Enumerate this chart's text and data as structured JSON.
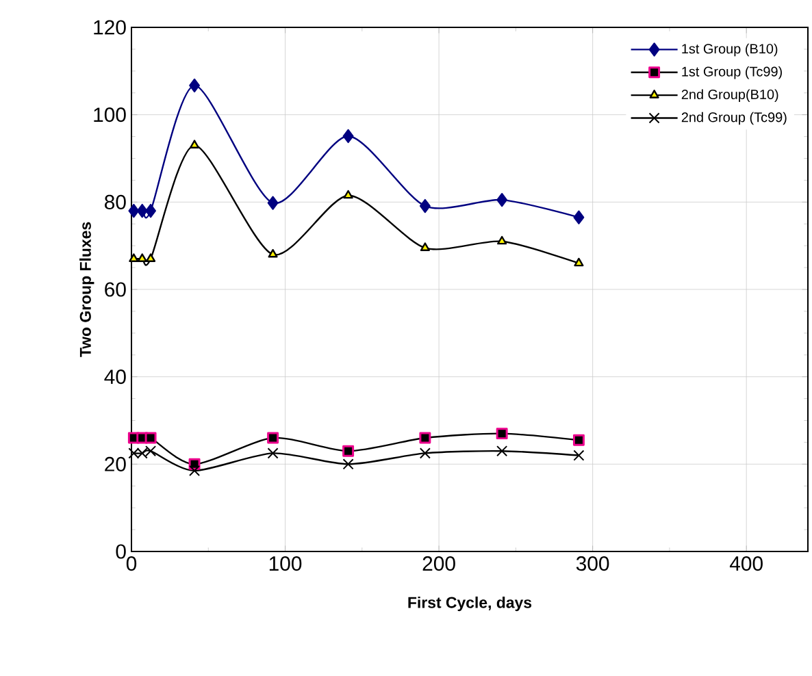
{
  "chart_data": {
    "type": "line",
    "xlabel": "First Cycle, days",
    "ylabel": "Two Group Fluxes",
    "x": [
      1.5,
      7,
      12.5,
      41,
      92,
      141,
      191,
      241,
      291
    ],
    "xlim": [
      0,
      440
    ],
    "xticks": [
      0,
      100,
      200,
      300,
      400
    ],
    "ylim": [
      0,
      120
    ],
    "yticks": [
      0,
      20,
      40,
      60,
      80,
      100,
      120
    ],
    "grid": true,
    "legend": "top right",
    "series": [
      {
        "name": "1st Group (B10)",
        "color": "#000080",
        "marker": "diamond",
        "values": [
          78,
          78,
          78,
          106.7,
          79.8,
          95.1,
          79.1,
          80.5,
          76.5
        ]
      },
      {
        "name": "1st Group (Tc99)",
        "color": "#000000",
        "marker": "square",
        "values": [
          26,
          26,
          26,
          20,
          26,
          23,
          26,
          27,
          25.5
        ]
      },
      {
        "name": "2nd Group(B10)",
        "color": "#000000",
        "marker": "triangle",
        "values": [
          67,
          67,
          67,
          93,
          68,
          81.5,
          69.5,
          71,
          66
        ]
      },
      {
        "name": "2nd Group (Tc99)",
        "color": "#000000",
        "marker": "cross",
        "values": [
          22.5,
          22.5,
          23,
          18.5,
          22.5,
          20,
          22.5,
          23,
          22
        ]
      }
    ]
  }
}
